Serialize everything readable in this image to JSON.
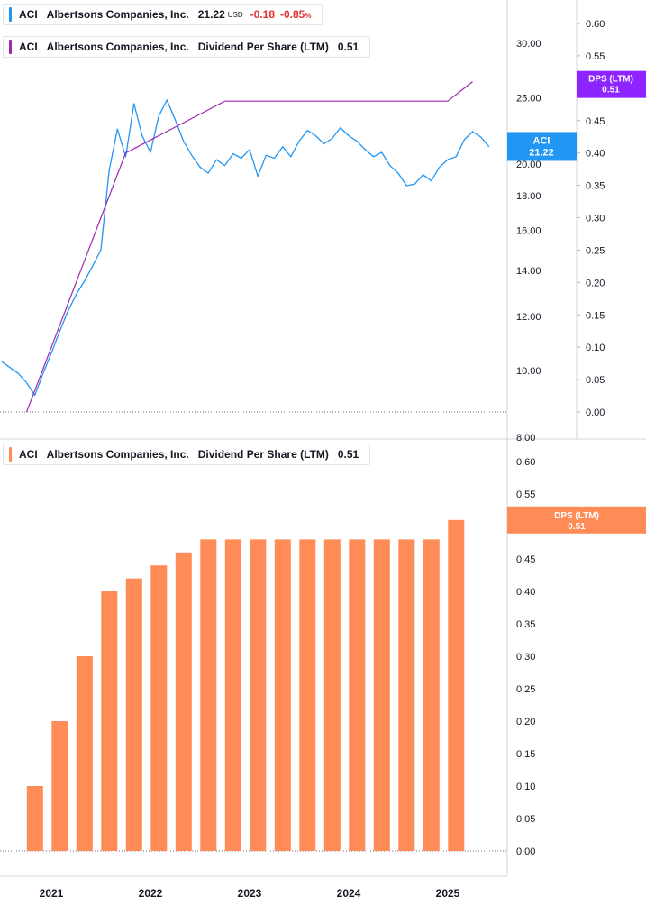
{
  "price_legend": {
    "symbol": "ACI",
    "name": "Albertsons Companies, Inc.",
    "price": "21.22",
    "currency": "USD",
    "change": "-0.18",
    "change_pct": "-0.85",
    "pct_sign": "%"
  },
  "dps_legend_top": {
    "symbol": "ACI",
    "name": "Albertsons Companies, Inc.",
    "metric": "Dividend Per Share (LTM)",
    "value": "0.51"
  },
  "dps_legend_bottom": {
    "symbol": "ACI",
    "name": "Albertsons Companies, Inc.",
    "metric": "Dividend Per Share (LTM)",
    "value": "0.51"
  },
  "badges": {
    "price_label": "ACI",
    "price_value": "21.22",
    "dps_label": "DPS (LTM)",
    "dps_value": "0.51"
  },
  "colors": {
    "price_line": "#2196f3",
    "dps_line": "#9c27b0",
    "dps_badge": "#8e24ff",
    "bars": "#ff8c57",
    "negative": "#e03131"
  },
  "chart_data": [
    {
      "type": "line",
      "title": "",
      "scale": "log",
      "ylim": [
        8.0,
        30.0
      ],
      "y_ticks": [
        "8.00",
        "10.00",
        "12.00",
        "14.00",
        "16.00",
        "18.00",
        "20.00",
        "25.00",
        "30.00"
      ],
      "y_tick_values": [
        8,
        10,
        12,
        14,
        16,
        18,
        20,
        25,
        30
      ],
      "series": [
        {
          "name": "ACI",
          "x": [
            "2020-07",
            "2020-09",
            "2020-10",
            "2020-11",
            "2020-12",
            "2021-01",
            "2021-02",
            "2021-03",
            "2021-04",
            "2021-05",
            "2021-06",
            "2021-07",
            "2021-08",
            "2021-09",
            "2021-10",
            "2021-11",
            "2021-12",
            "2022-01",
            "2022-02",
            "2022-03",
            "2022-04",
            "2022-05",
            "2022-06",
            "2022-07",
            "2022-08",
            "2022-09",
            "2022-10",
            "2022-11",
            "2022-12",
            "2023-01",
            "2023-02",
            "2023-03",
            "2023-04",
            "2023-05",
            "2023-06",
            "2023-07",
            "2023-08",
            "2023-09",
            "2023-10",
            "2023-11",
            "2023-12",
            "2024-01",
            "2024-02",
            "2024-03",
            "2024-04",
            "2024-05",
            "2024-06",
            "2024-07",
            "2024-08",
            "2024-09",
            "2024-10",
            "2024-11",
            "2024-12",
            "2025-01",
            "2025-02",
            "2025-03",
            "2025-04",
            "2025-05",
            "2025-06"
          ],
          "values": [
            10.3,
            9.9,
            9.6,
            9.2,
            9.9,
            10.6,
            11.4,
            12.2,
            12.9,
            13.5,
            14.2,
            15.0,
            19.6,
            22.5,
            20.5,
            24.5,
            22.0,
            20.8,
            23.5,
            24.8,
            23.2,
            21.6,
            20.6,
            19.8,
            19.4,
            20.3,
            19.9,
            20.7,
            20.4,
            21.0,
            19.2,
            20.6,
            20.4,
            21.2,
            20.5,
            21.6,
            22.4,
            22.0,
            21.4,
            21.8,
            22.6,
            22.0,
            21.6,
            21.0,
            20.5,
            20.8,
            19.9,
            19.4,
            18.6,
            18.7,
            19.3,
            18.9,
            19.8,
            20.3,
            20.5,
            21.7,
            22.3,
            21.9,
            21.2
          ]
        },
        {
          "name": "Dividend Per Share (LTM)",
          "x": [
            "2020-10",
            "2021-01",
            "2021-04",
            "2021-07",
            "2021-10",
            "2022-01",
            "2022-04",
            "2022-07",
            "2022-10",
            "2023-01",
            "2023-04",
            "2023-07",
            "2023-10",
            "2024-01",
            "2024-04",
            "2024-07",
            "2024-10",
            "2025-01",
            "2025-04"
          ],
          "values": [
            0.0,
            0.1,
            0.2,
            0.3,
            0.4,
            0.42,
            0.44,
            0.46,
            0.48,
            0.48,
            0.48,
            0.48,
            0.48,
            0.48,
            0.48,
            0.48,
            0.48,
            0.48,
            0.51
          ]
        }
      ],
      "y2_ticks": [
        "0.00",
        "0.05",
        "0.10",
        "0.15",
        "0.20",
        "0.25",
        "0.30",
        "0.35",
        "0.40",
        "0.45",
        "0.50",
        "0.55",
        "0.60"
      ],
      "y2lim": [
        0.0,
        0.6
      ]
    },
    {
      "type": "bar",
      "title": "",
      "categories": [
        "2020-12",
        "2021-03",
        "2021-06",
        "2021-09",
        "2021-12",
        "2022-03",
        "2022-06",
        "2022-09",
        "2022-12",
        "2023-03",
        "2023-06",
        "2023-09",
        "2023-12",
        "2024-03",
        "2024-06",
        "2024-09",
        "2024-12",
        "2025-03"
      ],
      "values": [
        0.1,
        0.2,
        0.3,
        0.4,
        0.42,
        0.44,
        0.46,
        0.48,
        0.48,
        0.48,
        0.48,
        0.48,
        0.48,
        0.48,
        0.48,
        0.48,
        0.48,
        0.51
      ],
      "ylim": [
        0.0,
        0.6
      ],
      "y_ticks": [
        "0.00",
        "0.05",
        "0.10",
        "0.15",
        "0.20",
        "0.25",
        "0.30",
        "0.35",
        "0.40",
        "0.45",
        "0.50",
        "0.55",
        "0.60"
      ],
      "x_ticks": [
        "2021",
        "2022",
        "2023",
        "2024",
        "2025"
      ]
    }
  ]
}
